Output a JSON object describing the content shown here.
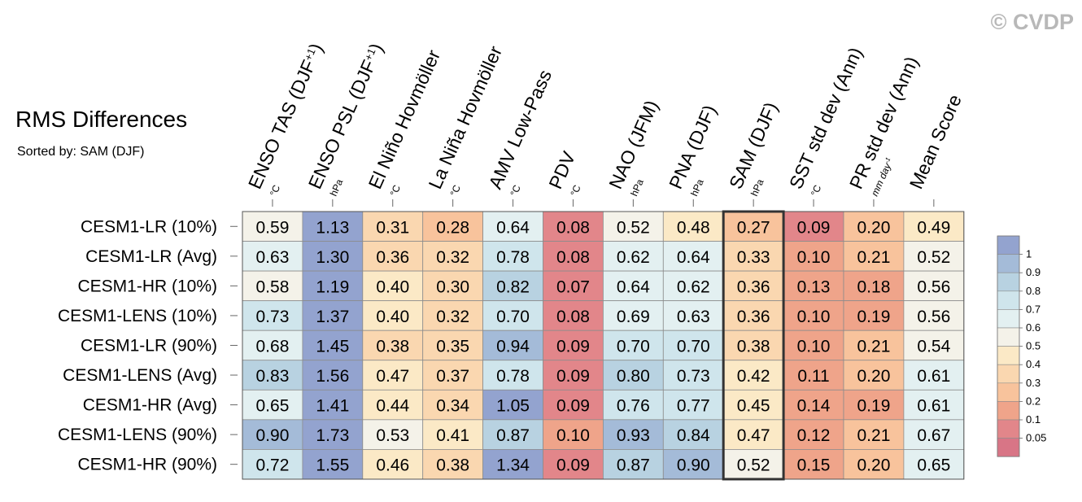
{
  "chart_data": {
    "type": "heatmap",
    "title": "RMS Differences",
    "subtitle": "Sorted by: SAM (DJF)",
    "watermark": "© CVDP",
    "columns": [
      {
        "label": "ENSO TAS (DJF",
        "sup": "+1",
        "close": ")",
        "unit": "°C"
      },
      {
        "label": "ENSO PSL (DJF",
        "sup": "+1",
        "close": ")",
        "unit": "hPa"
      },
      {
        "label": "El Niño Hovmöller",
        "sup": "",
        "close": "",
        "unit": "°C"
      },
      {
        "label": "La Niña Hovmöller",
        "sup": "",
        "close": "",
        "unit": "°C"
      },
      {
        "label": "AMV Low-Pass",
        "sup": "",
        "close": "",
        "unit": "°C"
      },
      {
        "label": "PDV",
        "sup": "",
        "close": "",
        "unit": "°C"
      },
      {
        "label": "NAO (JFM)",
        "sup": "",
        "close": "",
        "unit": "hPa"
      },
      {
        "label": "PNA (DJF)",
        "sup": "",
        "close": "",
        "unit": "hPa"
      },
      {
        "label": "SAM (DJF)",
        "sup": "",
        "close": "",
        "unit": "hPa"
      },
      {
        "label": "SST std dev (Ann)",
        "sup": "",
        "close": "",
        "unit": "°C"
      },
      {
        "label": "PR std dev (Ann)",
        "sup": "",
        "close": "",
        "unit": "mm day",
        "unit_sup": "-1"
      },
      {
        "label": "Mean Score",
        "sup": "",
        "close": "",
        "unit": ""
      }
    ],
    "rows": [
      "CESM1-LR (10%)",
      "CESM1-LR (Avg)",
      "CESM1-HR (10%)",
      "CESM1-LENS (10%)",
      "CESM1-LR (90%)",
      "CESM1-LENS (Avg)",
      "CESM1-HR (Avg)",
      "CESM1-LENS (90%)",
      "CESM1-HR (90%)"
    ],
    "values": [
      [
        "0.59",
        "1.13",
        "0.31",
        "0.28",
        "0.64",
        "0.08",
        "0.52",
        "0.48",
        "0.27",
        "0.09",
        "0.20",
        "0.49"
      ],
      [
        "0.63",
        "1.30",
        "0.36",
        "0.32",
        "0.78",
        "0.08",
        "0.62",
        "0.64",
        "0.33",
        "0.10",
        "0.21",
        "0.52"
      ],
      [
        "0.58",
        "1.19",
        "0.40",
        "0.30",
        "0.82",
        "0.07",
        "0.64",
        "0.62",
        "0.36",
        "0.13",
        "0.18",
        "0.56"
      ],
      [
        "0.73",
        "1.37",
        "0.40",
        "0.32",
        "0.70",
        "0.08",
        "0.69",
        "0.63",
        "0.36",
        "0.10",
        "0.19",
        "0.56"
      ],
      [
        "0.68",
        "1.45",
        "0.38",
        "0.35",
        "0.94",
        "0.09",
        "0.70",
        "0.70",
        "0.38",
        "0.10",
        "0.21",
        "0.54"
      ],
      [
        "0.83",
        "1.56",
        "0.47",
        "0.37",
        "0.78",
        "0.09",
        "0.80",
        "0.73",
        "0.42",
        "0.11",
        "0.20",
        "0.61"
      ],
      [
        "0.65",
        "1.41",
        "0.44",
        "0.34",
        "1.05",
        "0.09",
        "0.76",
        "0.77",
        "0.45",
        "0.14",
        "0.19",
        "0.61"
      ],
      [
        "0.90",
        "1.73",
        "0.53",
        "0.41",
        "0.87",
        "0.10",
        "0.93",
        "0.84",
        "0.47",
        "0.12",
        "0.21",
        "0.67"
      ],
      [
        "0.72",
        "1.55",
        "0.46",
        "0.38",
        "1.34",
        "0.09",
        "0.87",
        "0.90",
        "0.52",
        "0.15",
        "0.20",
        "0.65"
      ]
    ],
    "highlight_column": 8,
    "legend": {
      "labels": [
        "1",
        "0.9",
        "0.8",
        "0.7",
        "0.6",
        "0.5",
        "0.4",
        "0.3",
        "0.2",
        "0.1",
        "0.05"
      ],
      "colors": [
        "#93a3cf",
        "#a4bbd8",
        "#b8d2e1",
        "#cfe5ec",
        "#e3f0f1",
        "#f4f2e9",
        "#fbe9c6",
        "#fad7b0",
        "#f8c39c",
        "#efa48a",
        "#e2868a",
        "#d87586"
      ],
      "thresholds": [
        1,
        0.9,
        0.8,
        0.7,
        0.6,
        0.5,
        0.4,
        0.3,
        0.2,
        0.1,
        0.05
      ],
      "placement": "right"
    }
  }
}
